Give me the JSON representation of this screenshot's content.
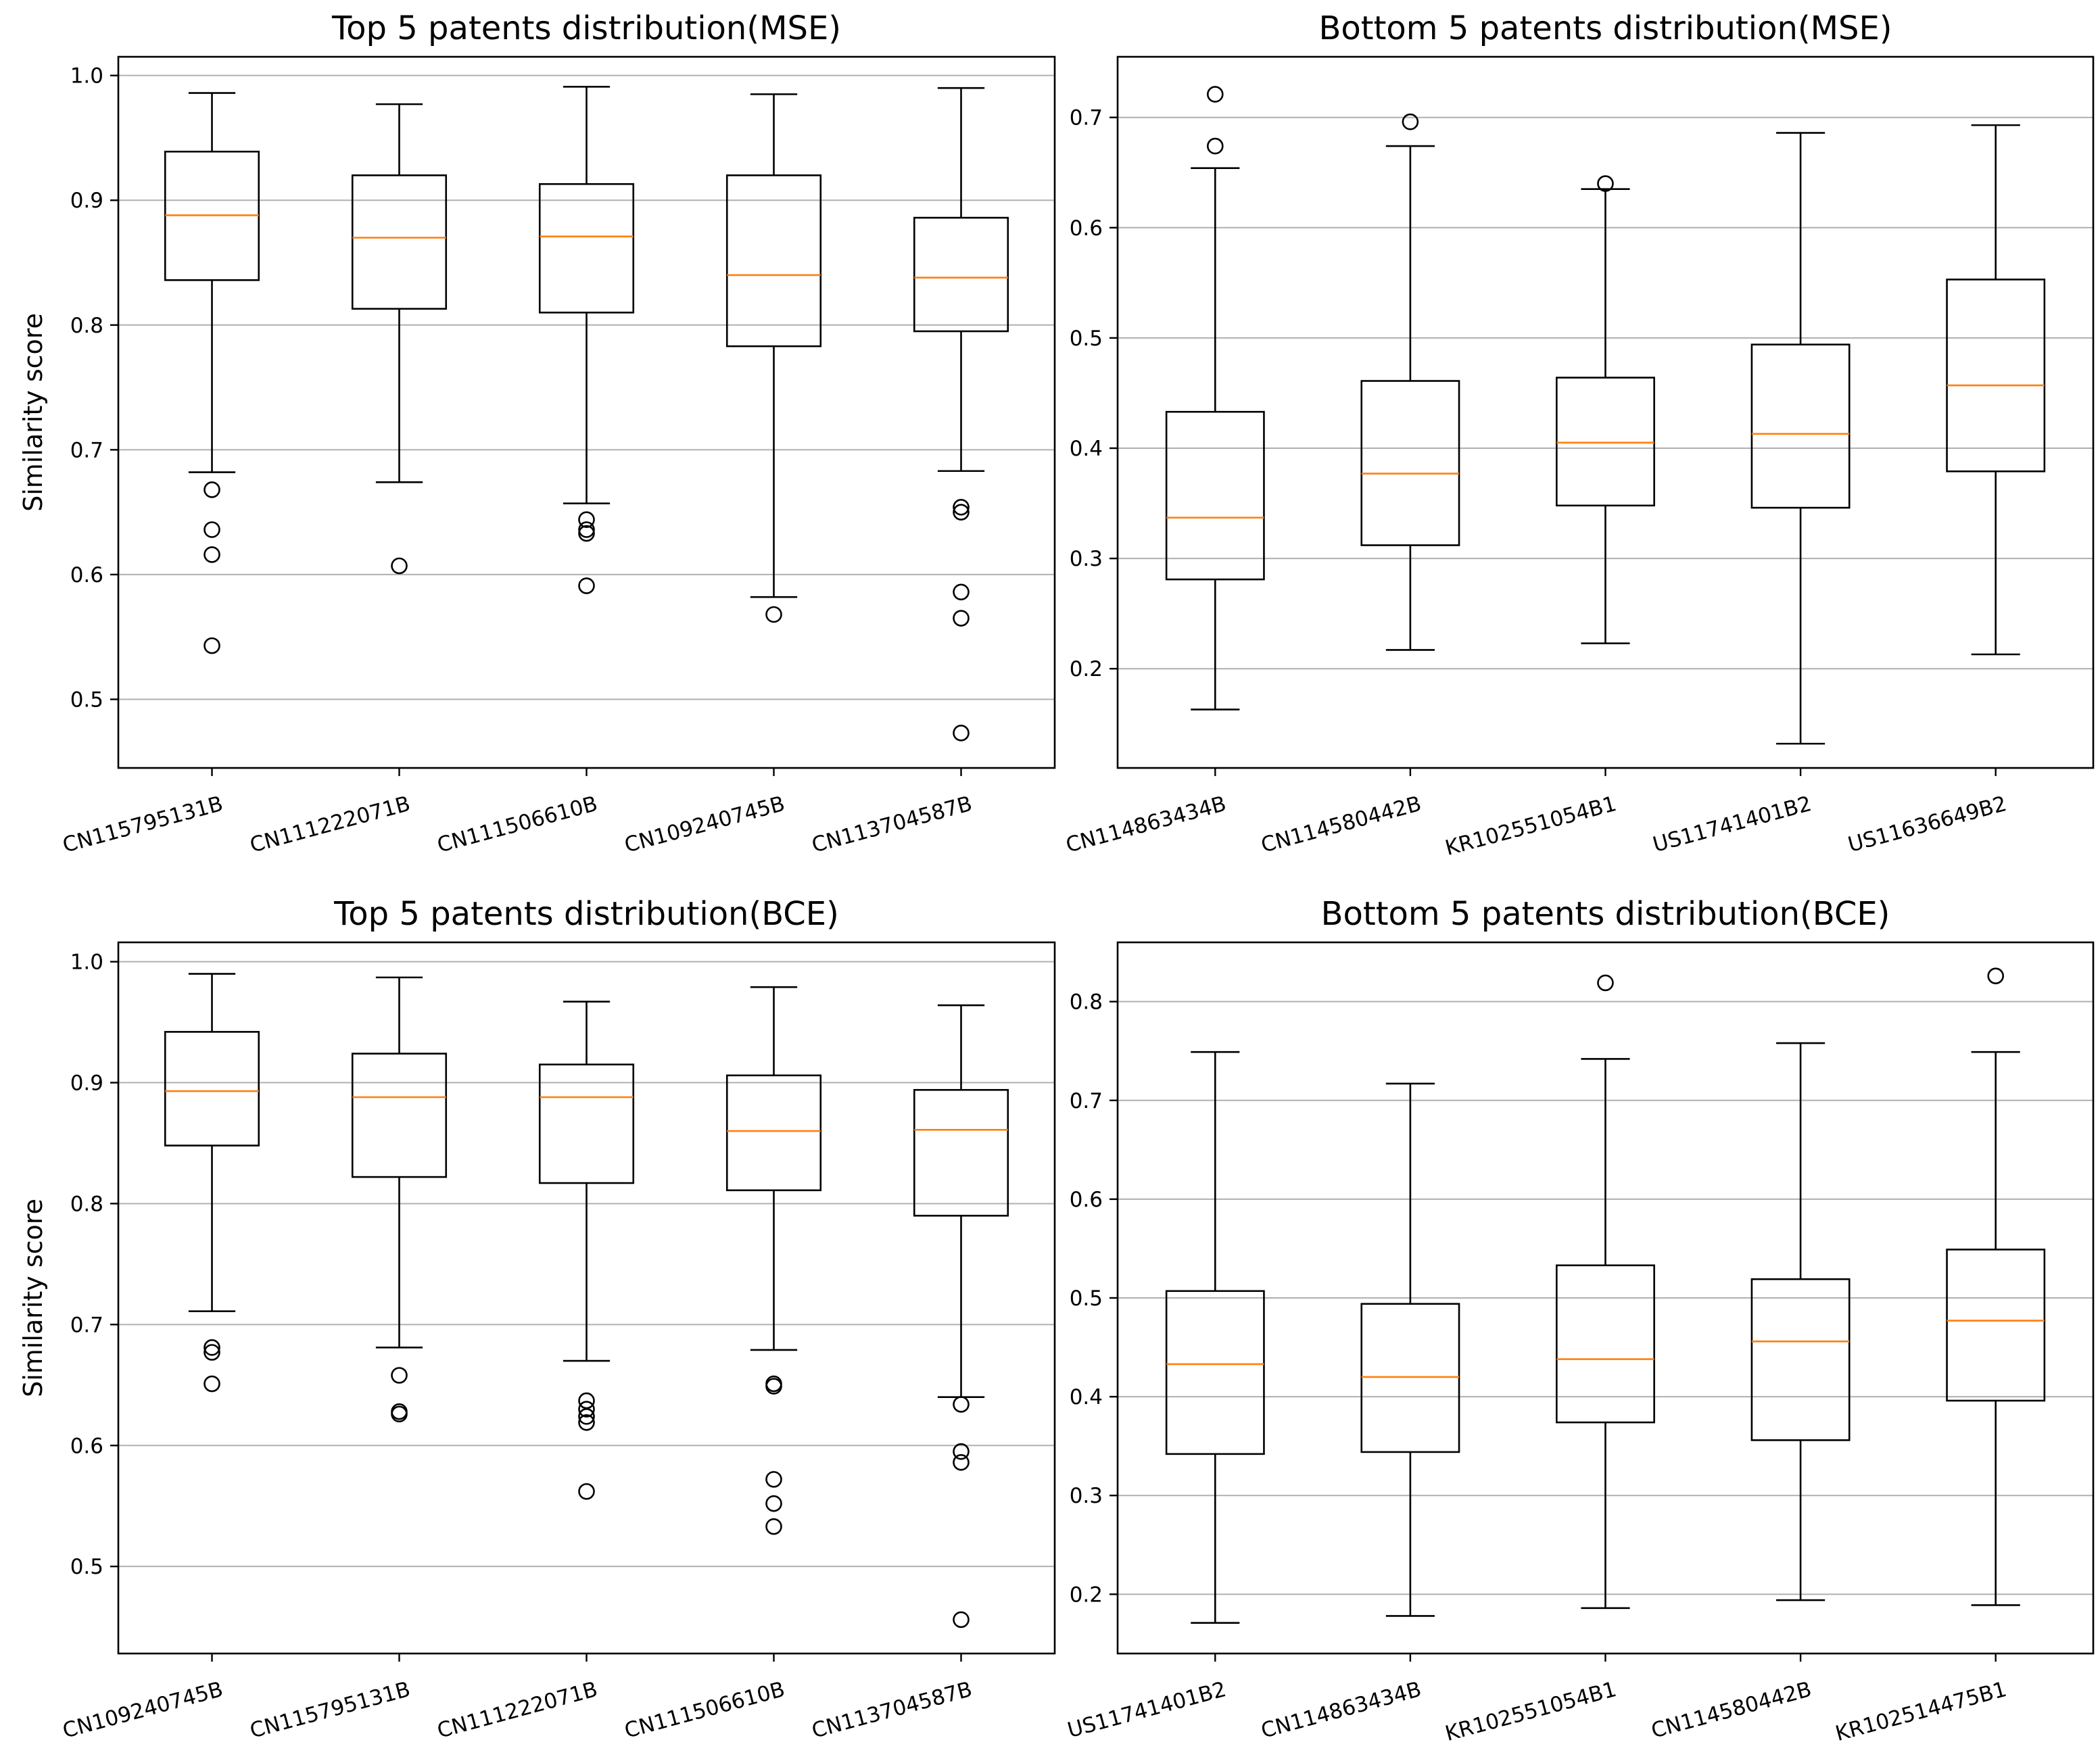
{
  "chart_data": [
    {
      "type": "box",
      "title": "Top 5 patents distribution(MSE)",
      "ylabel": "Similarity score",
      "ylim": [
        0.445,
        1.015
      ],
      "yticks": [
        0.5,
        0.6,
        0.7,
        0.8,
        0.9,
        1.0
      ],
      "grid": "y",
      "categories": [
        "CN115795131B",
        "CN111222071B",
        "CN111506610B",
        "CN109240745B",
        "CN113704587B"
      ],
      "boxes": [
        {
          "whislo": 0.682,
          "q1": 0.836,
          "med": 0.888,
          "q3": 0.939,
          "whishi": 0.986,
          "fliers": [
            0.668,
            0.636,
            0.616,
            0.543
          ]
        },
        {
          "whislo": 0.674,
          "q1": 0.813,
          "med": 0.87,
          "q3": 0.92,
          "whishi": 0.977,
          "fliers": [
            0.607
          ]
        },
        {
          "whislo": 0.657,
          "q1": 0.81,
          "med": 0.871,
          "q3": 0.913,
          "whishi": 0.991,
          "fliers": [
            0.644,
            0.636,
            0.633,
            0.591
          ]
        },
        {
          "whislo": 0.582,
          "q1": 0.783,
          "med": 0.84,
          "q3": 0.92,
          "whishi": 0.985,
          "fliers": [
            0.568
          ]
        },
        {
          "whislo": 0.683,
          "q1": 0.795,
          "med": 0.838,
          "q3": 0.886,
          "whishi": 0.99,
          "fliers": [
            0.654,
            0.65,
            0.586,
            0.565,
            0.473
          ]
        }
      ]
    },
    {
      "type": "box",
      "title": "Bottom 5 patents distribution(MSE)",
      "ylabel": "",
      "ylim": [
        0.11,
        0.755
      ],
      "yticks": [
        0.2,
        0.3,
        0.4,
        0.5,
        0.6,
        0.7
      ],
      "grid": "y",
      "categories": [
        "CN114863434B",
        "CN114580442B",
        "KR102551054B1",
        "US11741401B2",
        "US11636649B2"
      ],
      "boxes": [
        {
          "whislo": 0.163,
          "q1": 0.281,
          "med": 0.337,
          "q3": 0.433,
          "whishi": 0.654,
          "fliers": [
            0.721,
            0.674
          ]
        },
        {
          "whislo": 0.217,
          "q1": 0.312,
          "med": 0.377,
          "q3": 0.461,
          "whishi": 0.674,
          "fliers": [
            0.696
          ]
        },
        {
          "whislo": 0.223,
          "q1": 0.348,
          "med": 0.405,
          "q3": 0.464,
          "whishi": 0.635,
          "fliers": [
            0.64
          ]
        },
        {
          "whislo": 0.132,
          "q1": 0.346,
          "med": 0.413,
          "q3": 0.494,
          "whishi": 0.686,
          "fliers": []
        },
        {
          "whislo": 0.213,
          "q1": 0.379,
          "med": 0.457,
          "q3": 0.553,
          "whishi": 0.693,
          "fliers": []
        }
      ]
    },
    {
      "type": "box",
      "title": "Top 5 patents distribution(BCE)",
      "ylabel": "Similarity score",
      "ylim": [
        0.428,
        1.016
      ],
      "yticks": [
        0.5,
        0.6,
        0.7,
        0.8,
        0.9,
        1.0
      ],
      "grid": "y",
      "categories": [
        "CN109240745B",
        "CN115795131B",
        "CN111222071B",
        "CN111506610B",
        "CN113704587B"
      ],
      "boxes": [
        {
          "whislo": 0.711,
          "q1": 0.848,
          "med": 0.893,
          "q3": 0.942,
          "whishi": 0.99,
          "fliers": [
            0.681,
            0.677,
            0.651
          ]
        },
        {
          "whislo": 0.681,
          "q1": 0.822,
          "med": 0.888,
          "q3": 0.924,
          "whishi": 0.987,
          "fliers": [
            0.658,
            0.628,
            0.626
          ]
        },
        {
          "whislo": 0.67,
          "q1": 0.817,
          "med": 0.888,
          "q3": 0.915,
          "whishi": 0.967,
          "fliers": [
            0.637,
            0.63,
            0.624,
            0.619,
            0.562
          ]
        },
        {
          "whislo": 0.679,
          "q1": 0.811,
          "med": 0.86,
          "q3": 0.906,
          "whishi": 0.979,
          "fliers": [
            0.651,
            0.649,
            0.572,
            0.552,
            0.533
          ]
        },
        {
          "whislo": 0.64,
          "q1": 0.79,
          "med": 0.861,
          "q3": 0.894,
          "whishi": 0.964,
          "fliers": [
            0.634,
            0.595,
            0.586,
            0.456
          ]
        }
      ]
    },
    {
      "type": "box",
      "title": "Bottom 5 patents distribution(BCE)",
      "ylabel": "",
      "ylim": [
        0.14,
        0.86
      ],
      "yticks": [
        0.2,
        0.3,
        0.4,
        0.5,
        0.6,
        0.7,
        0.8
      ],
      "grid": "y",
      "categories": [
        "US11741401B2",
        "CN114863434B",
        "KR102551054B1",
        "CN114580442B",
        "KR102514475B1"
      ],
      "boxes": [
        {
          "whislo": 0.171,
          "q1": 0.342,
          "med": 0.433,
          "q3": 0.507,
          "whishi": 0.749,
          "fliers": []
        },
        {
          "whislo": 0.178,
          "q1": 0.344,
          "med": 0.42,
          "q3": 0.494,
          "whishi": 0.717,
          "fliers": []
        },
        {
          "whislo": 0.186,
          "q1": 0.374,
          "med": 0.438,
          "q3": 0.533,
          "whishi": 0.742,
          "fliers": [
            0.819
          ]
        },
        {
          "whislo": 0.194,
          "q1": 0.356,
          "med": 0.456,
          "q3": 0.519,
          "whishi": 0.758,
          "fliers": []
        },
        {
          "whislo": 0.189,
          "q1": 0.396,
          "med": 0.477,
          "q3": 0.549,
          "whishi": 0.749,
          "fliers": [
            0.826
          ]
        }
      ]
    }
  ],
  "colors": {
    "box": "#000000",
    "median": "#ff7f0e",
    "grid": "#b0b0b0"
  }
}
